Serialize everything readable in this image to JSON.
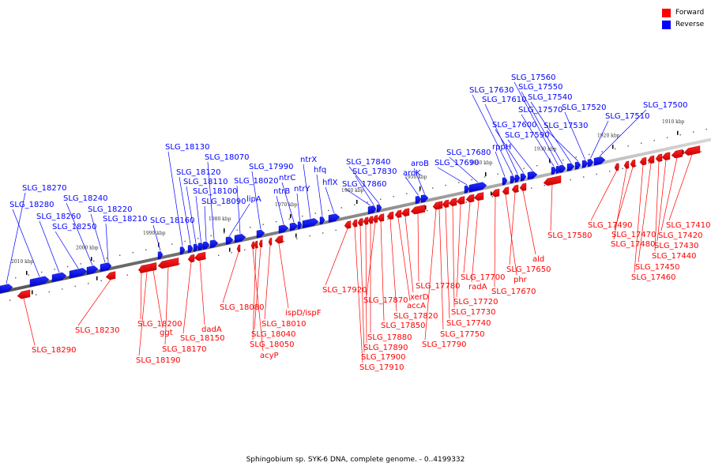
{
  "legend": {
    "forward_label": "Forward",
    "reverse_label": "Reverse",
    "forward_color": "#ff0000",
    "reverse_color": "#0000ff"
  },
  "caption": "Sphingobium sp. SYK-6 DNA, complete genome. - 0..4199332",
  "axis": {
    "start_kbp": 1910,
    "end_kbp": 2010,
    "ticks": [
      "2010 kbp",
      "2000 kbp",
      "1990 kbp",
      "1980 kbp",
      "1970 kbp",
      "1960 kbp",
      "1950 kbp",
      "1940 kbp",
      "1930 kbp",
      "1920 kbp",
      "1910 kbp"
    ]
  },
  "reverse_genes": [
    "SLG_17500",
    "SLG_17510",
    "SLG_17520",
    "SLG_17530",
    "SLG_17540",
    "SLG_17550",
    "SLG_17560",
    "SLG_17570",
    "SLG_17590",
    "SLG_17600",
    "SLG_17610",
    "SLG_17630",
    "rppH",
    "SLG_17680",
    "SLG_17690",
    "aroB",
    "aroK",
    "SLG_17840",
    "SLG_17830",
    "SLG_17860",
    "hflX",
    "hfq",
    "ntrX",
    "ntrY",
    "ntrC",
    "ntrB",
    "SLG_17990",
    "SLG_18020",
    "lipA",
    "SLG_18070",
    "SLG_18090",
    "SLG_18100",
    "SLG_18110",
    "SLG_18120",
    "SLG_18130",
    "SLG_18160",
    "SLG_18210",
    "SLG_18220",
    "SLG_18240",
    "SLG_18250",
    "SLG_18260",
    "SLG_18280",
    "SLG_18270"
  ],
  "forward_genes": [
    "SLG_17410",
    "SLG_17420",
    "SLG_17430",
    "SLG_17440",
    "SLG_17450",
    "SLG_17460",
    "SLG_17470",
    "SLG_17480",
    "SLG_17490",
    "SLG_17580",
    "ald",
    "SLG_17650",
    "phr",
    "SLG_17670",
    "radA",
    "SLG_17700",
    "SLG_17720",
    "SLG_17730",
    "SLG_17740",
    "SLG_17750",
    "SLG_17790",
    "SLG_17780",
    "xerD",
    "accA",
    "SLG_17820",
    "SLG_17850",
    "SLG_17870",
    "SLG_17880",
    "SLG_17890",
    "SLG_17900",
    "SLG_17910",
    "SLG_17920",
    "ispD/ispF",
    "SLG_18010",
    "SLG_18040",
    "SLG_18050",
    "acyP",
    "SLG_18080",
    "dadA",
    "SLG_18150",
    "SLG_18170",
    "SLG_18190",
    "ggt",
    "SLG_18200",
    "SLG_18230",
    "SLG_18290"
  ]
}
